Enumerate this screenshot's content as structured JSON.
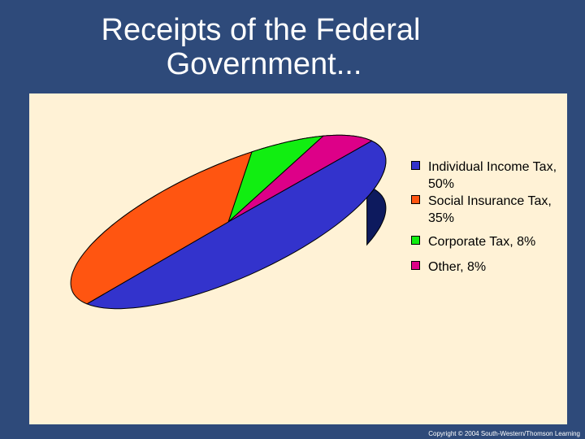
{
  "title_line1": "Receipts of the Federal",
  "title_line2": "Government...",
  "copyright": "Copyright © 2004 South-Western/Thomson Learning",
  "chart_data": {
    "type": "pie",
    "three_d": true,
    "legend_position": "right",
    "slices": [
      {
        "label": "Individual Income Tax, 50%",
        "value": 50,
        "color": "#3333cc",
        "side_color": "#0d1a5e"
      },
      {
        "label": "Social Insurance Tax, 35%",
        "value": 35,
        "color": "#ff5511",
        "side_color": "#6b2200"
      },
      {
        "label": "Corporate Tax, 8%",
        "value": 8,
        "color": "#11ee11",
        "side_color": "#0a6a0a"
      },
      {
        "label": "Other, 8%",
        "value": 8,
        "color": "#dd0088",
        "side_color": "#5e003a"
      }
    ]
  }
}
